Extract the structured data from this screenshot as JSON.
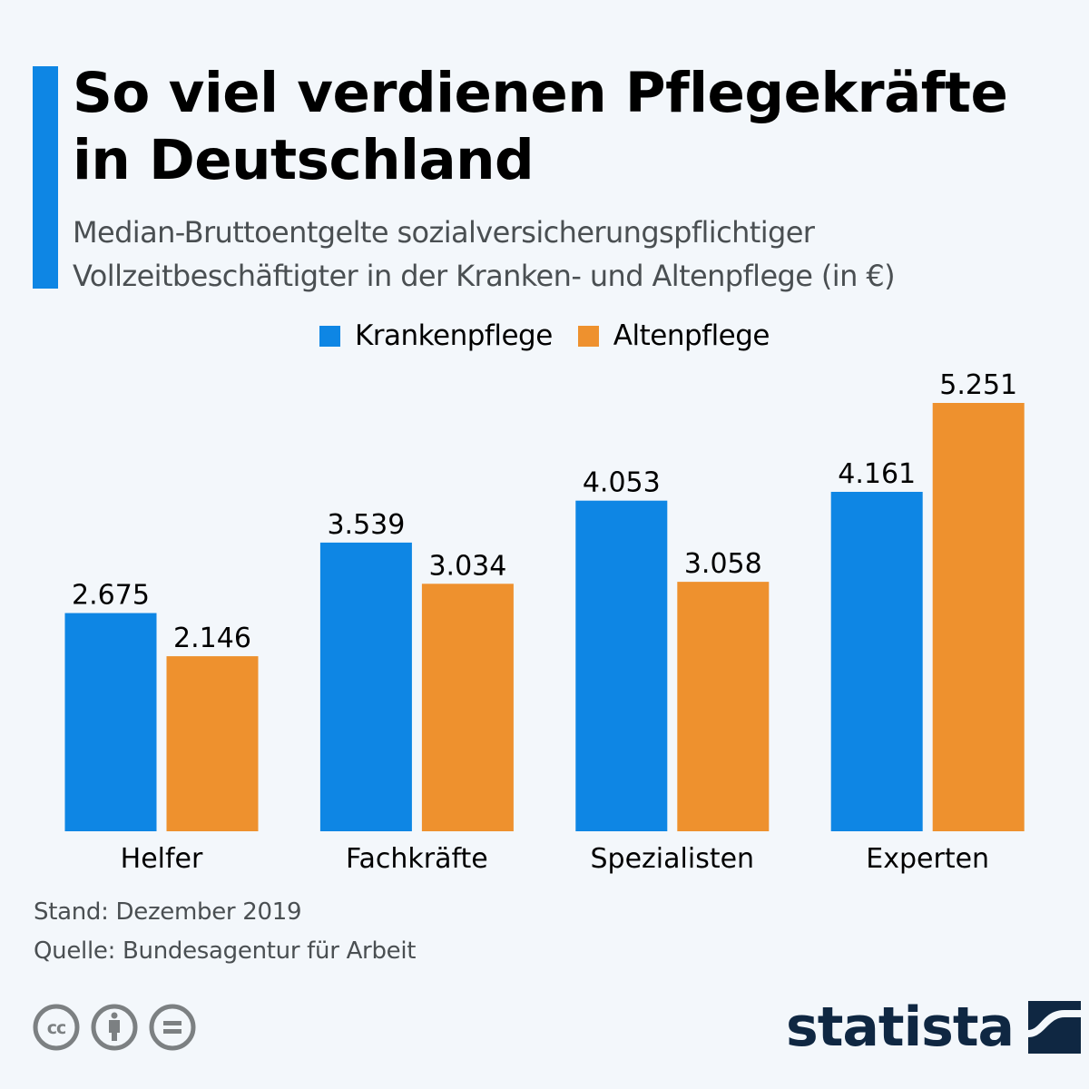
{
  "header": {
    "title": "So viel verdienen Pflegekräfte in Deutschland",
    "subtitle": "Median-Bruttoentgelte sozialversicherungspflichtiger Vollzeitbeschäftigter in der Kranken- und Altenpflege (in €)"
  },
  "colors": {
    "accent": "#0e86e4",
    "krankenpflege": "#0e86e4",
    "altenpflege": "#ee912e",
    "logo": "#0f2742"
  },
  "chart_data": {
    "type": "bar",
    "title": "So viel verdienen Pflegekräfte in Deutschland",
    "subtitle": "Median-Bruttoentgelte sozialversicherungspflichtiger Vollzeitbeschäftigter in der Kranken- und Altenpflege (in €)",
    "xlabel": "",
    "ylabel": "",
    "categories": [
      "Helfer",
      "Fachkräfte",
      "Spezialisten",
      "Experten"
    ],
    "series": [
      {
        "name": "Krankenpflege",
        "color": "#0e86e4",
        "values": [
          2675,
          3539,
          4053,
          4161
        ],
        "labels": [
          "2.675",
          "3.539",
          "4.053",
          "4.161"
        ]
      },
      {
        "name": "Altenpflege",
        "color": "#ee912e",
        "values": [
          2146,
          3034,
          3058,
          5251
        ],
        "labels": [
          "2.146",
          "3.034",
          "3.058",
          "5.251"
        ]
      }
    ],
    "ylim": [
      0,
      5251
    ],
    "grid": false,
    "legend": "top-center"
  },
  "footer": {
    "stand": "Stand: Dezember 2019",
    "quelle": "Quelle: Bundesagentur für Arbeit",
    "icons": [
      "cc-icon",
      "attribution-icon",
      "no-derivatives-icon"
    ],
    "logo_text": "statista"
  }
}
